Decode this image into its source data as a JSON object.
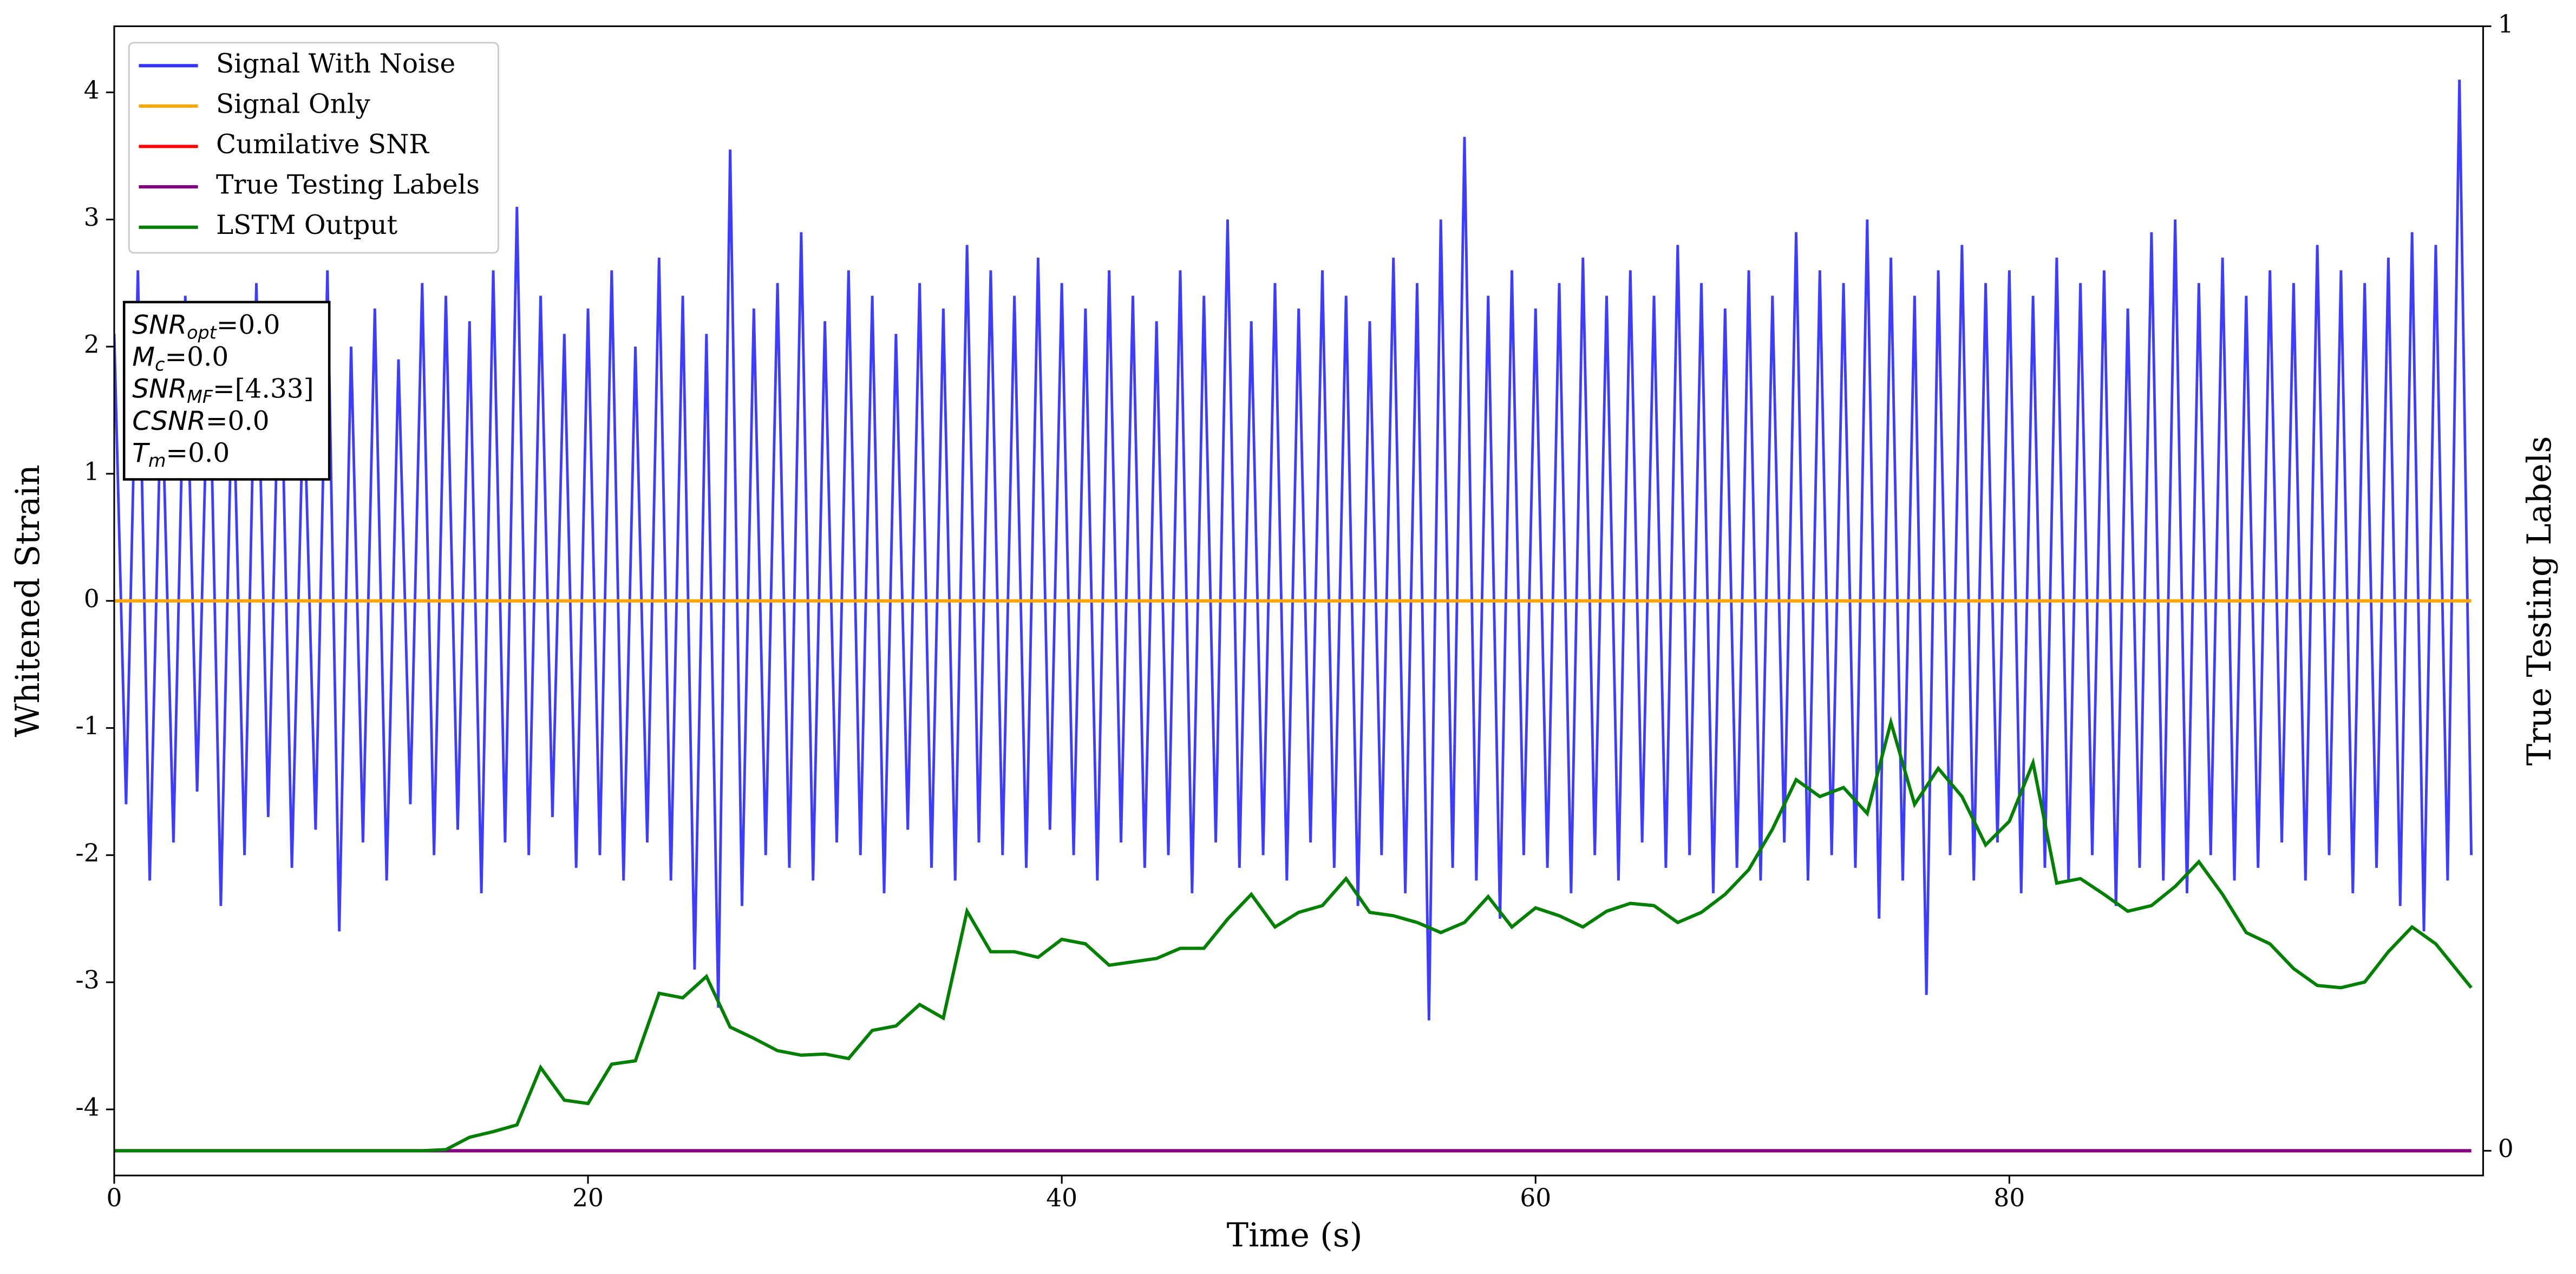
{
  "chart_data": {
    "type": "line",
    "xlabel": "Time (s)",
    "ylabel": "Whitened Strain",
    "y2label": "True Testing Labels",
    "xlim": [
      0,
      100
    ],
    "ylim": [
      -4.52,
      4.52
    ],
    "y2lim": [
      -0.022,
      1
    ],
    "xticks": [
      0,
      20,
      40,
      60,
      80
    ],
    "yticks": [
      -4,
      -3,
      -2,
      -1,
      0,
      1,
      2,
      3,
      4
    ],
    "y2ticks": [
      0,
      1
    ],
    "legend": "upper left",
    "series": [
      {
        "name": "Signal With Noise",
        "color": "#3333ff",
        "x": [
          0,
          0.5,
          1,
          1.5,
          2,
          2.5,
          3,
          3.5,
          4,
          4.5,
          5,
          5.5,
          6,
          6.5,
          7,
          7.5,
          8,
          8.5,
          9,
          9.5,
          10,
          10.5,
          11,
          11.5,
          12,
          12.5,
          13,
          13.5,
          14,
          14.5,
          15,
          15.5,
          16,
          16.5,
          17,
          17.5,
          18,
          18.5,
          19,
          19.5,
          20,
          20.5,
          21,
          21.5,
          22,
          22.5,
          23,
          23.5,
          24,
          24.5,
          25,
          25.5,
          26,
          26.5,
          27,
          27.5,
          28,
          28.5,
          29,
          29.5,
          30,
          30.5,
          31,
          31.5,
          32,
          32.5,
          33,
          33.5,
          34,
          34.5,
          35,
          35.5,
          36,
          36.5,
          37,
          37.5,
          38,
          38.5,
          39,
          39.5,
          40,
          40.5,
          41,
          41.5,
          42,
          42.5,
          43,
          43.5,
          44,
          44.5,
          45,
          45.5,
          46,
          46.5,
          47,
          47.5,
          48,
          48.5,
          49,
          49.5,
          50,
          50.5,
          51,
          51.5,
          52,
          52.5,
          53,
          53.5,
          54,
          54.5,
          55,
          55.5,
          56,
          56.5,
          57,
          57.5,
          58,
          58.5,
          59,
          59.5,
          60,
          60.5,
          61,
          61.5,
          62,
          62.5,
          63,
          63.5,
          64,
          64.5,
          65,
          65.5,
          66,
          66.5,
          67,
          67.5,
          68,
          68.5,
          69,
          69.5,
          70,
          70.5,
          71,
          71.5,
          72,
          72.5,
          73,
          73.5,
          74,
          74.5,
          75,
          75.5,
          76,
          76.5,
          77,
          77.5,
          78,
          78.5,
          79,
          79.5,
          80,
          80.5,
          81,
          81.5,
          82,
          82.5,
          83,
          83.5,
          84,
          84.5,
          85,
          85.5,
          86,
          86.5,
          87,
          87.5,
          88,
          88.5,
          89,
          89.5,
          90,
          90.5,
          91,
          91.5,
          92,
          92.5,
          93,
          93.5,
          94,
          94.5,
          95,
          95.5,
          96,
          96.5,
          97,
          97.5,
          98,
          98.5,
          99,
          99.5
        ],
        "values": [
          2.1,
          -1.6,
          2.6,
          -2.2,
          1.8,
          -1.9,
          2.4,
          -1.5,
          2.2,
          -2.4,
          1.9,
          -2.0,
          2.5,
          -1.7,
          2.3,
          -2.1,
          1.7,
          -1.8,
          2.6,
          -2.6,
          2.0,
          -1.9,
          2.3,
          -2.2,
          1.9,
          -1.6,
          2.5,
          -2.0,
          2.4,
          -1.8,
          2.2,
          -2.3,
          2.6,
          -1.9,
          3.1,
          -2.0,
          2.4,
          -1.7,
          2.1,
          -2.1,
          2.3,
          -2.0,
          2.6,
          -2.2,
          2.0,
          -1.9,
          2.7,
          -2.2,
          2.4,
          -2.9,
          2.1,
          -3.2,
          3.55,
          -2.4,
          2.3,
          -2.0,
          2.5,
          -2.1,
          2.9,
          -2.2,
          2.2,
          -1.9,
          2.6,
          -2.0,
          2.4,
          -2.3,
          2.1,
          -1.8,
          2.5,
          -2.1,
          2.3,
          -2.2,
          2.8,
          -1.9,
          2.6,
          -2.0,
          2.4,
          -2.1,
          2.7,
          -1.8,
          2.5,
          -2.0,
          2.3,
          -2.2,
          2.6,
          -1.9,
          2.4,
          -2.1,
          2.2,
          -2.0,
          2.6,
          -2.3,
          2.4,
          -1.9,
          3.0,
          -2.1,
          2.2,
          -2.0,
          2.5,
          -2.2,
          2.3,
          -1.9,
          2.6,
          -2.1,
          2.4,
          -2.4,
          2.2,
          -2.0,
          2.7,
          -2.3,
          2.5,
          -3.3,
          3.0,
          -2.1,
          3.65,
          -2.2,
          2.4,
          -2.5,
          2.6,
          -2.0,
          2.3,
          -2.1,
          2.5,
          -2.3,
          2.7,
          -2.0,
          2.4,
          -2.2,
          2.6,
          -1.9,
          2.4,
          -2.1,
          2.8,
          -2.0,
          2.5,
          -2.3,
          2.3,
          -2.1,
          2.6,
          -2.2,
          2.4,
          -1.9,
          2.9,
          -2.2,
          2.6,
          -2.0,
          2.5,
          -2.1,
          3.0,
          -2.5,
          2.7,
          -2.2,
          2.4,
          -3.1,
          2.6,
          -2.0,
          2.8,
          -2.2,
          2.5,
          -1.9,
          2.6,
          -2.3,
          2.4,
          -2.1,
          2.7,
          -2.2,
          2.5,
          -2.0,
          2.6,
          -2.4,
          2.3,
          -2.1,
          2.9,
          -2.2,
          3.0,
          -2.3,
          2.5,
          -2.0,
          2.7,
          -2.2,
          2.4,
          -2.1,
          2.6,
          -1.9,
          2.5,
          -2.2,
          2.8,
          -2.0,
          2.6,
          -2.3,
          2.5,
          -2.1,
          2.7,
          -2.4,
          2.9,
          -2.6,
          2.8,
          -2.2,
          4.1,
          -2.0
        ]
      },
      {
        "name": "Signal Only",
        "color": "#ffa500",
        "x": [
          0,
          99.5
        ],
        "values": [
          0,
          0
        ]
      },
      {
        "name": "Cumilative SNR",
        "color": "#ff0000",
        "axis": "y2",
        "x": [
          0,
          99.5
        ],
        "values": [
          0,
          0
        ]
      },
      {
        "name": "True Testing Labels",
        "color": "#800080",
        "axis": "y2",
        "x": [
          0,
          99.5
        ],
        "values": [
          0,
          0
        ]
      },
      {
        "name": "LSTM Output",
        "color": "#008000",
        "axis": "y2",
        "x": [
          0,
          1,
          2,
          3,
          4,
          5,
          6,
          7,
          8,
          9,
          10,
          11,
          12,
          13,
          14,
          15,
          16,
          17,
          18,
          19,
          20,
          21,
          22,
          23,
          24,
          25,
          26,
          27,
          28,
          29,
          30,
          31,
          32,
          33,
          34,
          35,
          36,
          37,
          38,
          39,
          40,
          41,
          42,
          43,
          44,
          45,
          46,
          47,
          48,
          49,
          50,
          51,
          52,
          53,
          54,
          55,
          56,
          57,
          58,
          59,
          60,
          61,
          62,
          63,
          64,
          65,
          66,
          67,
          68,
          69,
          70,
          71,
          72,
          73,
          74,
          75,
          76,
          77,
          78,
          79,
          80,
          81,
          82,
          83,
          84,
          85,
          86,
          87,
          88,
          89,
          90,
          91,
          92,
          93,
          94,
          95,
          96,
          97,
          98,
          99.5
        ],
        "values": [
          0,
          0,
          0,
          0,
          0,
          0,
          0,
          0,
          0,
          0,
          0,
          0,
          0,
          0,
          0.001,
          0.012,
          0.017,
          0.023,
          0.074,
          0.045,
          0.042,
          0.077,
          0.08,
          0.14,
          0.136,
          0.155,
          0.11,
          0.1,
          0.089,
          0.085,
          0.086,
          0.082,
          0.107,
          0.111,
          0.13,
          0.118,
          0.213,
          0.177,
          0.177,
          0.172,
          0.188,
          0.184,
          0.165,
          0.168,
          0.171,
          0.18,
          0.18,
          0.206,
          0.228,
          0.199,
          0.212,
          0.218,
          0.242,
          0.212,
          0.209,
          0.203,
          0.194,
          0.203,
          0.226,
          0.199,
          0.216,
          0.209,
          0.199,
          0.213,
          0.22,
          0.218,
          0.203,
          0.212,
          0.228,
          0.25,
          0.286,
          0.33,
          0.315,
          0.323,
          0.3,
          0.381,
          0.308,
          0.34,
          0.315,
          0.272,
          0.293,
          0.345,
          0.238,
          0.242,
          0.228,
          0.213,
          0.218,
          0.235,
          0.257,
          0.228,
          0.194,
          0.184,
          0.162,
          0.147,
          0.145,
          0.15,
          0.177,
          0.199,
          0.184,
          0.145
        ]
      }
    ],
    "annotation": [
      {
        "main": "SNR",
        "sub": "opt",
        "text": "=0.0"
      },
      {
        "main": "M",
        "sub": "c",
        "text": "=0.0"
      },
      {
        "main": "SNR",
        "sub": "MF",
        "text": "=[4.33]"
      },
      {
        "main": "CSNR",
        "text": "=0.0"
      },
      {
        "main": "T",
        "sub": "m",
        "text": "=0.0"
      }
    ]
  }
}
